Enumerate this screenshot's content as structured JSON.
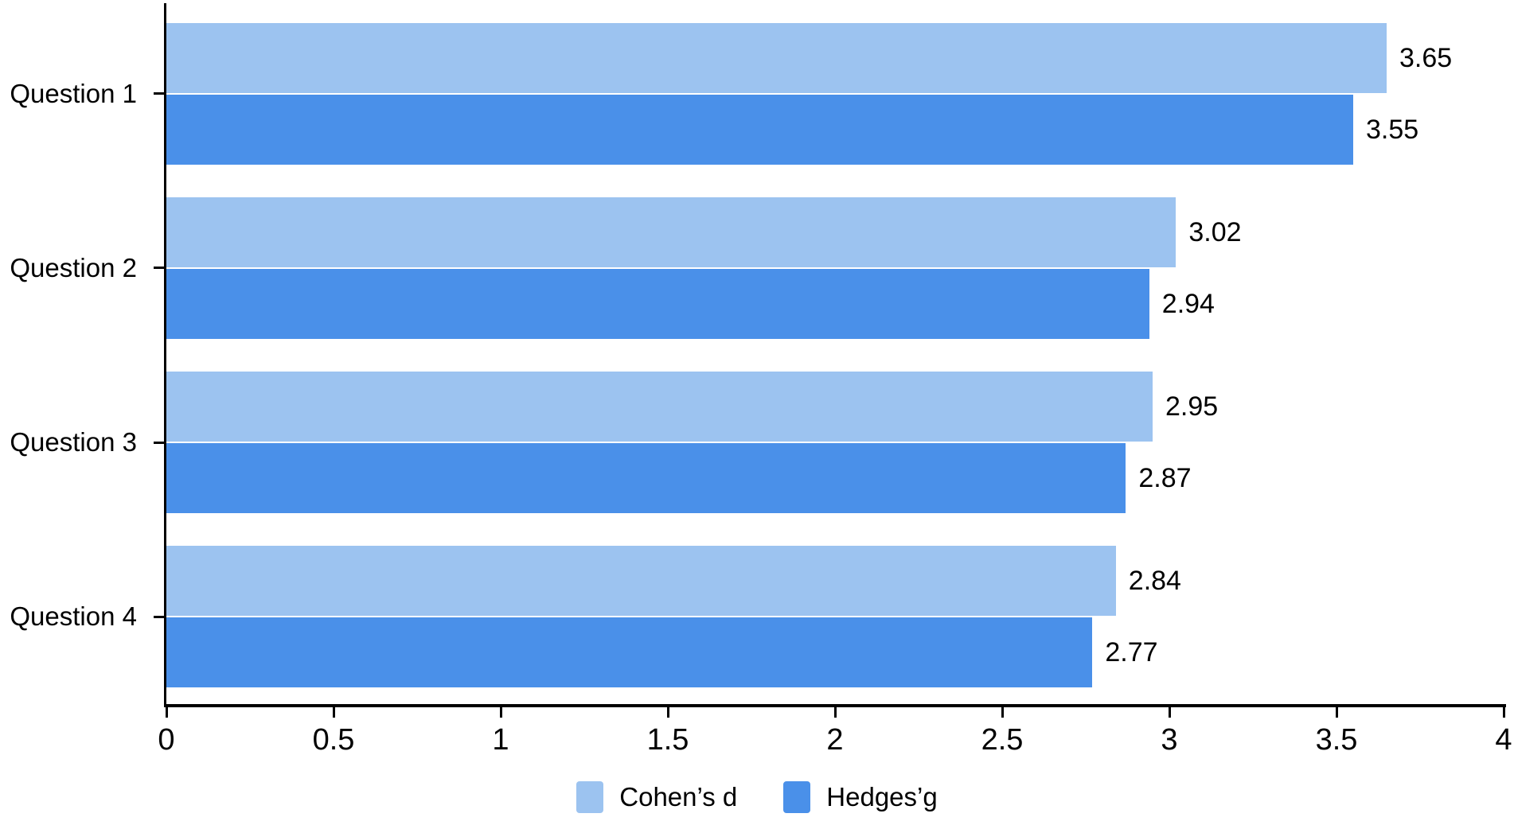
{
  "chart_data": {
    "type": "bar",
    "orientation": "horizontal",
    "title": "",
    "categories": [
      "Question 1",
      "Question 2",
      "Question 3",
      "Question 4"
    ],
    "series": [
      {
        "name": "Cohen’s d",
        "color": "#9CC3F0",
        "values": [
          3.65,
          3.02,
          2.95,
          2.84
        ],
        "value_labels": [
          "3.65",
          "3.02",
          "2.95",
          "2.84"
        ]
      },
      {
        "name": "Hedges’g",
        "color": "#4A90E9",
        "values": [
          3.55,
          2.94,
          2.87,
          2.77
        ],
        "value_labels": [
          "3.55",
          "2.94",
          "2.87",
          "2.77"
        ]
      }
    ],
    "xlabel": "",
    "ylabel": "",
    "xlim": [
      0,
      4
    ],
    "x_ticks": [
      0,
      0.5,
      1,
      1.5,
      2,
      2.5,
      3,
      3.5,
      4
    ],
    "x_tick_labels": [
      "0",
      "0.5",
      "1",
      "1.5",
      "2",
      "2.5",
      "3",
      "3.5",
      "4"
    ],
    "grid": false,
    "value_labels_shown": true,
    "legend_position": "bottom",
    "axis_color": "#000000",
    "text_color": "#000000",
    "background_color": "#ffffff",
    "bar_pair_separator_color": "#ffffff"
  },
  "legend": {
    "items": [
      {
        "label": "Cohen’s d",
        "color": "#9CC3F0"
      },
      {
        "label": "Hedges’g",
        "color": "#4A90E9"
      }
    ]
  }
}
